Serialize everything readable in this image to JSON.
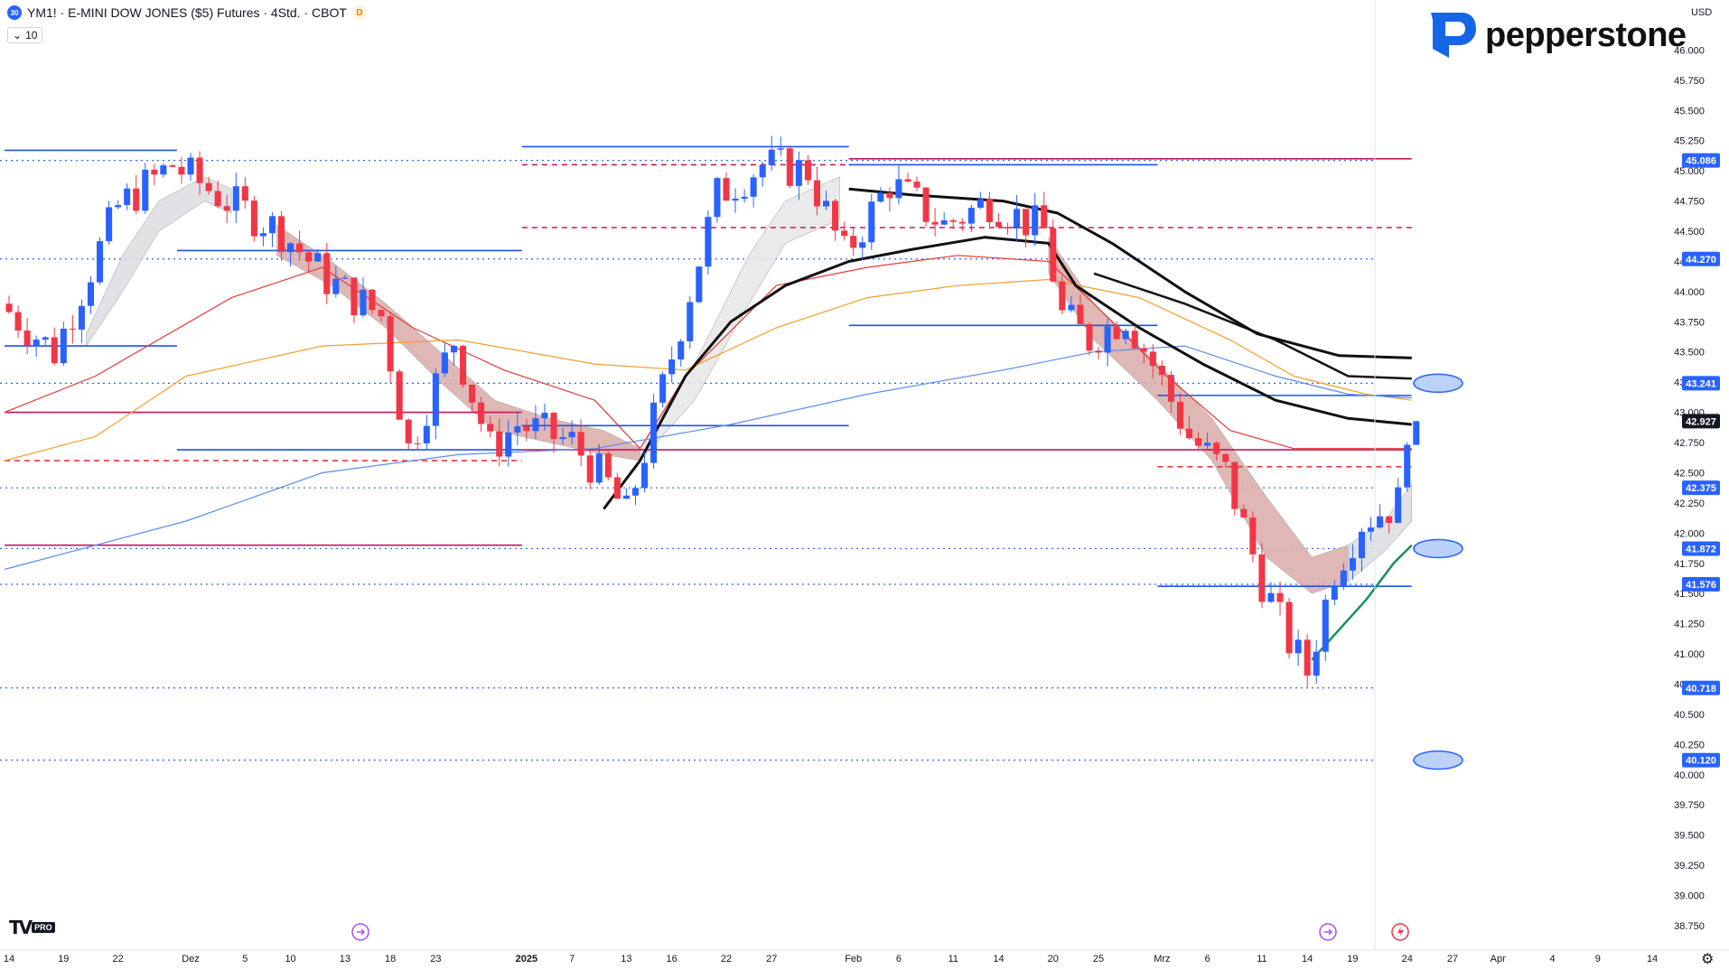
{
  "header": {
    "symbol_badge": "30",
    "title": "YM1! · E-MINI DOW JONES ($5) Futures · 4Std. · CBOT",
    "d_badge": "D",
    "sub_value": "10"
  },
  "brand": {
    "name": "pepperstone",
    "color": "#1565e6"
  },
  "currency": "USD",
  "tv": {
    "mark": "TV",
    "pro": "PRO"
  },
  "chart_data": {
    "type": "candlestick",
    "y_ticks": [
      "46.000",
      "45.750",
      "45.500",
      "45.250",
      "45.000",
      "44.750",
      "44.500",
      "44.250",
      "44.000",
      "43.750",
      "43.500",
      "43.250",
      "43.000",
      "42.750",
      "42.500",
      "42.250",
      "42.000",
      "41.750",
      "41.500",
      "41.250",
      "41.000",
      "40.750",
      "40.500",
      "40.250",
      "40.000",
      "39.750",
      "39.500",
      "39.250",
      "39.000",
      "38.750"
    ],
    "ylim": [
      38.6,
      46.25
    ],
    "x_ticks": [
      "14",
      "19",
      "22",
      "Dez",
      "5",
      "10",
      "13",
      "18",
      "23",
      "2025",
      "7",
      "13",
      "16",
      "22",
      "27",
      "Feb",
      "6",
      "11",
      "14",
      "20",
      "25",
      "Mrz",
      "6",
      "11",
      "14",
      "19",
      "24",
      "27",
      "Apr",
      "4",
      "9",
      "14"
    ],
    "price_labels": [
      {
        "value": "45.086",
        "y": 45.086,
        "bg": "#2962ff"
      },
      {
        "value": "44.270",
        "y": 44.27,
        "bg": "#2962ff"
      },
      {
        "value": "43.241",
        "y": 43.241,
        "bg": "#2962ff"
      },
      {
        "value": "42.927",
        "y": 42.927,
        "bg": "#131722"
      },
      {
        "value": "42.375",
        "y": 42.375,
        "bg": "#2962ff"
      },
      {
        "value": "41.872",
        "y": 41.872,
        "bg": "#2962ff"
      },
      {
        "value": "41.576",
        "y": 41.576,
        "bg": "#2962ff"
      },
      {
        "value": "40.718",
        "y": 40.718,
        "bg": "#2962ff"
      },
      {
        "value": "40.120",
        "y": 40.12,
        "bg": "#2962ff"
      }
    ],
    "dotted_levels": [
      45.086,
      44.27,
      43.241,
      42.375,
      41.872,
      41.576,
      40.718,
      40.12
    ],
    "bar_range": [
      0,
      155
    ],
    "x_tick_bars": [
      0,
      6,
      12,
      20,
      26,
      31,
      37,
      42,
      47,
      57,
      62,
      68,
      73,
      79,
      84,
      93,
      98,
      104,
      109,
      115,
      120,
      127,
      132,
      138,
      143,
      148,
      154,
      159,
      164,
      170,
      175,
      181
    ],
    "key_points": [
      [
        0,
        43.9
      ],
      [
        6,
        43.5
      ],
      [
        13,
        44.7
      ],
      [
        19,
        45.05
      ],
      [
        25,
        44.75
      ],
      [
        31,
        44.5
      ],
      [
        36,
        44.1
      ],
      [
        42,
        43.8
      ],
      [
        45,
        42.7
      ],
      [
        50,
        43.6
      ],
      [
        54,
        42.7
      ],
      [
        57,
        42.9
      ],
      [
        63,
        42.75
      ],
      [
        67,
        42.4
      ],
      [
        69,
        42.15
      ],
      [
        73,
        43.2
      ],
      [
        79,
        44.8
      ],
      [
        84,
        45.05
      ],
      [
        89,
        45.0
      ],
      [
        93,
        44.3
      ],
      [
        98,
        44.9
      ],
      [
        104,
        44.55
      ],
      [
        109,
        44.75
      ],
      [
        115,
        44.5
      ],
      [
        117,
        43.8
      ],
      [
        120,
        43.6
      ],
      [
        124,
        43.8
      ],
      [
        127,
        43.4
      ],
      [
        131,
        42.8
      ],
      [
        135,
        42.5
      ],
      [
        139,
        41.6
      ],
      [
        142,
        41.1
      ],
      [
        144,
        40.85
      ],
      [
        147,
        41.7
      ],
      [
        150,
        42.1
      ],
      [
        154,
        42.25
      ],
      [
        155,
        42.9
      ]
    ],
    "hlines": [
      {
        "y": 45.17,
        "b0": 0,
        "b1": 19,
        "color": "#1e53e5",
        "dash": false
      },
      {
        "y": 44.34,
        "b0": 19,
        "b1": 57,
        "color": "#1e53e5",
        "dash": false
      },
      {
        "y": 43.55,
        "b0": 0,
        "b1": 19,
        "color": "#1e53e5",
        "dash": false
      },
      {
        "y": 43.0,
        "b0": 0,
        "b1": 57,
        "color": "#c2185b",
        "dash": false
      },
      {
        "y": 42.69,
        "b0": 19,
        "b1": 57,
        "color": "#1e53e5",
        "dash": false
      },
      {
        "y": 42.6,
        "b0": 0,
        "b1": 57,
        "color": "#e53935",
        "dash": true
      },
      {
        "y": 41.9,
        "b0": 0,
        "b1": 57,
        "color": "#c2185b",
        "dash": false
      },
      {
        "y": 45.2,
        "b0": 57,
        "b1": 93,
        "color": "#1e53e5",
        "dash": false
      },
      {
        "y": 45.05,
        "b0": 57,
        "b1": 93,
        "color": "#c2185b",
        "dash": true
      },
      {
        "y": 44.53,
        "b0": 57,
        "b1": 155,
        "color": "#c2185b",
        "dash": true
      },
      {
        "y": 45.1,
        "b0": 93,
        "b1": 155,
        "color": "#c2185b",
        "dash": false
      },
      {
        "y": 45.05,
        "b0": 93,
        "b1": 127,
        "color": "#1e53e5",
        "dash": false
      },
      {
        "y": 43.72,
        "b0": 93,
        "b1": 127,
        "color": "#1e53e5",
        "dash": false
      },
      {
        "y": 42.89,
        "b0": 57,
        "b1": 93,
        "color": "#1e53e5",
        "dash": false
      },
      {
        "y": 42.69,
        "b0": 57,
        "b1": 155,
        "color": "#c2185b",
        "dash": false
      },
      {
        "y": 43.14,
        "b0": 127,
        "b1": 155,
        "color": "#1e53e5",
        "dash": false
      },
      {
        "y": 41.56,
        "b0": 127,
        "b1": 155,
        "color": "#1e53e5",
        "dash": false
      },
      {
        "y": 42.55,
        "b0": 127,
        "b1": 155,
        "color": "#e53935",
        "dash": true
      }
    ],
    "ellipses": [
      43.241,
      41.872,
      40.12
    ],
    "indicators": [
      {
        "name": "",
        "color": "#e53935",
        "pts": [
          [
            0,
            43.0
          ],
          [
            10,
            43.3
          ],
          [
            25,
            43.95
          ],
          [
            35,
            44.2
          ],
          [
            45,
            43.7
          ],
          [
            55,
            43.35
          ],
          [
            65,
            43.1
          ],
          [
            70,
            42.7
          ],
          [
            75,
            43.3
          ],
          [
            85,
            44.05
          ],
          [
            95,
            44.2
          ],
          [
            105,
            44.3
          ],
          [
            115,
            44.25
          ],
          [
            120,
            43.9
          ],
          [
            128,
            43.3
          ],
          [
            135,
            42.85
          ],
          [
            142,
            42.7
          ],
          [
            150,
            42.7
          ],
          [
            155,
            42.7
          ]
        ]
      },
      {
        "name": "",
        "color": "#f59d2a",
        "pts": [
          [
            0,
            42.6
          ],
          [
            10,
            42.8
          ],
          [
            20,
            43.3
          ],
          [
            35,
            43.55
          ],
          [
            50,
            43.6
          ],
          [
            65,
            43.4
          ],
          [
            75,
            43.35
          ],
          [
            85,
            43.7
          ],
          [
            95,
            43.95
          ],
          [
            105,
            44.05
          ],
          [
            115,
            44.1
          ],
          [
            125,
            43.95
          ],
          [
            135,
            43.6
          ],
          [
            142,
            43.3
          ],
          [
            150,
            43.15
          ],
          [
            155,
            43.1
          ]
        ]
      },
      {
        "name": "",
        "color": "#5b8def",
        "pts": [
          [
            0,
            41.7
          ],
          [
            20,
            42.1
          ],
          [
            35,
            42.5
          ],
          [
            50,
            42.65
          ],
          [
            65,
            42.7
          ],
          [
            80,
            42.9
          ],
          [
            95,
            43.15
          ],
          [
            110,
            43.35
          ],
          [
            120,
            43.5
          ],
          [
            130,
            43.55
          ],
          [
            140,
            43.3
          ],
          [
            148,
            43.15
          ],
          [
            155,
            43.12
          ]
        ]
      },
      {
        "name": "",
        "color": "#111111",
        "width": 3,
        "pts": [
          [
            66,
            42.2
          ],
          [
            70,
            42.6
          ],
          [
            75,
            43.3
          ],
          [
            80,
            43.75
          ],
          [
            86,
            44.05
          ],
          [
            93,
            44.25
          ],
          [
            100,
            44.35
          ],
          [
            108,
            44.45
          ],
          [
            115,
            44.4
          ],
          [
            118,
            44.05
          ],
          [
            125,
            43.7
          ],
          [
            132,
            43.4
          ],
          [
            140,
            43.1
          ],
          [
            148,
            42.95
          ],
          [
            155,
            42.9
          ]
        ]
      },
      {
        "name": "",
        "color": "#111111",
        "width": 3,
        "pts": [
          [
            93,
            44.85
          ],
          [
            100,
            44.8
          ],
          [
            110,
            44.75
          ],
          [
            116,
            44.65
          ],
          [
            122,
            44.4
          ],
          [
            130,
            44.0
          ],
          [
            138,
            43.65
          ],
          [
            147,
            43.47
          ],
          [
            155,
            43.45
          ]
        ]
      },
      {
        "name": "",
        "color": "#111111",
        "width": 2.5,
        "pts": [
          [
            120,
            44.15
          ],
          [
            130,
            43.9
          ],
          [
            140,
            43.6
          ],
          [
            148,
            43.3
          ],
          [
            155,
            43.28
          ]
        ]
      },
      {
        "name": "",
        "color": "#1b8e5c",
        "width": 2.5,
        "pts": [
          [
            144,
            40.95
          ],
          [
            147,
            41.2
          ],
          [
            150,
            41.45
          ],
          [
            153,
            41.75
          ],
          [
            155,
            41.9
          ]
        ]
      }
    ],
    "ribbons": [
      {
        "fill": "#dcdde0",
        "top": [
          [
            9,
            43.65
          ],
          [
            13,
            44.3
          ],
          [
            17,
            44.75
          ],
          [
            22,
            44.95
          ],
          [
            25,
            44.85
          ]
        ],
        "bot": [
          [
            9,
            43.55
          ],
          [
            13,
            44.0
          ],
          [
            17,
            44.5
          ],
          [
            22,
            44.75
          ],
          [
            25,
            44.65
          ]
        ]
      },
      {
        "fill": "#d9aaa8",
        "top": [
          [
            30,
            44.55
          ],
          [
            36,
            44.25
          ],
          [
            42,
            43.9
          ],
          [
            48,
            43.5
          ],
          [
            54,
            43.1
          ],
          [
            60,
            42.95
          ],
          [
            66,
            42.85
          ],
          [
            70,
            42.7
          ]
        ],
        "bot": [
          [
            30,
            44.3
          ],
          [
            36,
            44.05
          ],
          [
            42,
            43.7
          ],
          [
            48,
            43.25
          ],
          [
            54,
            42.85
          ],
          [
            60,
            42.75
          ],
          [
            66,
            42.65
          ],
          [
            70,
            42.6
          ]
        ]
      },
      {
        "fill": "#e6e6e8",
        "top": [
          [
            70,
            42.7
          ],
          [
            76,
            43.4
          ],
          [
            82,
            44.3
          ],
          [
            86,
            44.75
          ],
          [
            92,
            44.95
          ]
        ],
        "bot": [
          [
            70,
            42.6
          ],
          [
            76,
            43.1
          ],
          [
            82,
            43.9
          ],
          [
            86,
            44.4
          ],
          [
            92,
            44.6
          ]
        ]
      },
      {
        "fill": "#d9aaa8",
        "top": [
          [
            115,
            44.45
          ],
          [
            120,
            43.9
          ],
          [
            127,
            43.4
          ],
          [
            133,
            42.95
          ],
          [
            139,
            42.3
          ],
          [
            144,
            41.8
          ],
          [
            148,
            41.9
          ]
        ],
        "bot": [
          [
            115,
            44.15
          ],
          [
            120,
            43.6
          ],
          [
            127,
            43.1
          ],
          [
            133,
            42.6
          ],
          [
            139,
            41.8
          ],
          [
            144,
            41.5
          ],
          [
            148,
            41.6
          ]
        ]
      },
      {
        "fill": "#dcdde0",
        "top": [
          [
            148,
            41.9
          ],
          [
            152,
            42.1
          ],
          [
            155,
            42.4
          ]
        ],
        "bot": [
          [
            148,
            41.6
          ],
          [
            152,
            41.85
          ],
          [
            155,
            42.1
          ]
        ]
      }
    ]
  }
}
